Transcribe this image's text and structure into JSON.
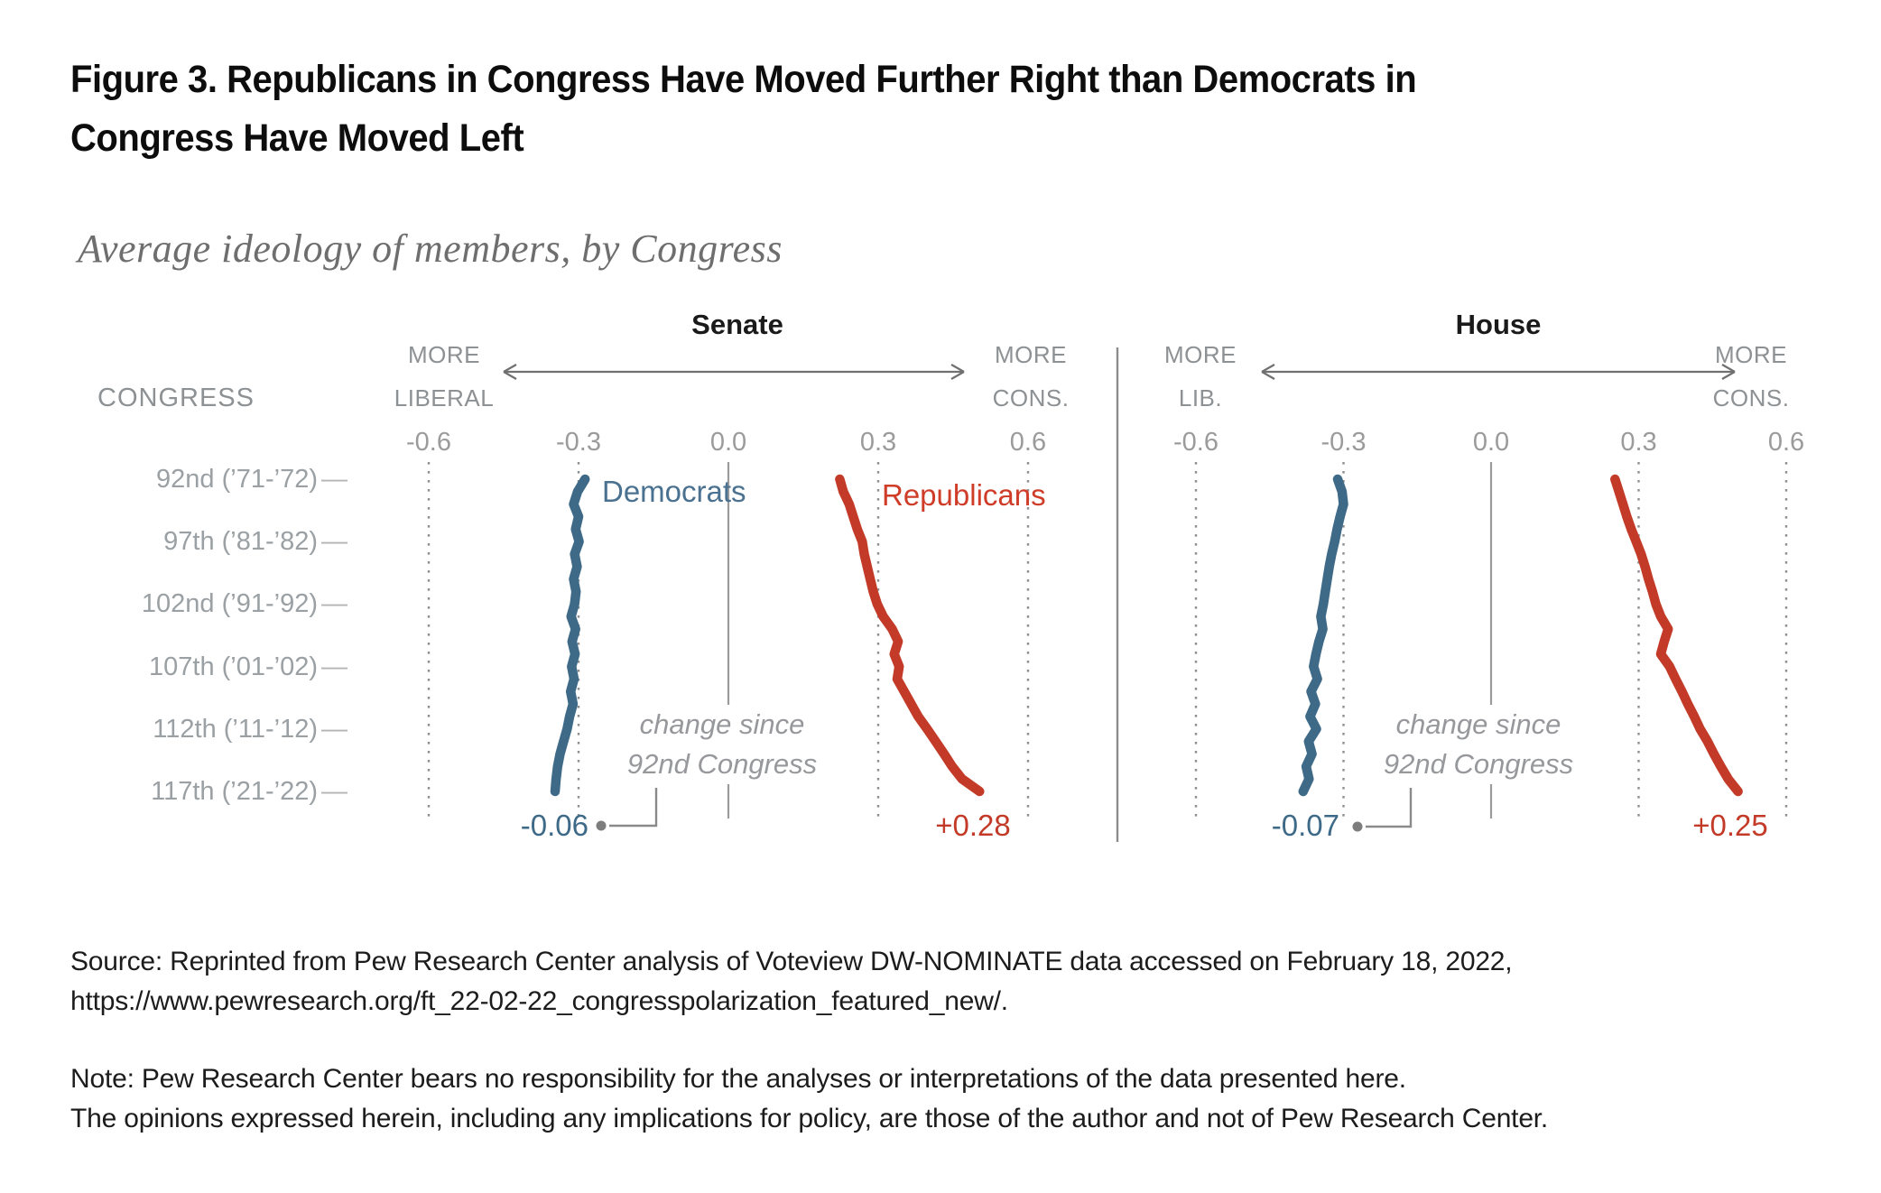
{
  "figure": {
    "title": "Figure 3. Republicans in Congress Have Moved Further Right than Democrats in\nCongress Have Moved Left",
    "subtitle": "Average ideology of members, by Congress",
    "source": "Source: Reprinted from Pew Research Center analysis of Voteview DW-NOMINATE data accessed on February 18, 2022,\nhttps://www.pewresearch.org/ft_22-02-22_congresspolarization_featured_new/.",
    "note": "Note: Pew Research Center bears no responsibility for the analyses or interpretations of the data presented here.\nThe opinions expressed herein, including any implications for policy, are those of the author and not of Pew Research Center."
  },
  "header": {
    "congress_label": "CONGRESS"
  },
  "chart_data": {
    "type": "line",
    "orientation": "vertical-time",
    "xlabel": "Average ideology (DW-NOMINATE)",
    "ylabel": "Congress",
    "x_congress": [
      92,
      93,
      94,
      95,
      96,
      97,
      98,
      99,
      100,
      101,
      102,
      103,
      104,
      105,
      106,
      107,
      108,
      109,
      110,
      111,
      112,
      113,
      114,
      115,
      116,
      117
    ],
    "congress_ticks": [
      {
        "congress": 92,
        "label": "92nd (’71-’72)"
      },
      {
        "congress": 97,
        "label": "97th (’81-’82)"
      },
      {
        "congress": 102,
        "label": "102nd (’91-’92)"
      },
      {
        "congress": 107,
        "label": "107th (’01-’02)"
      },
      {
        "congress": 112,
        "label": "112th (’11-’12)"
      },
      {
        "congress": 117,
        "label": "117th (’21-’22)"
      }
    ],
    "value_ticks": [
      "-0.6",
      "-0.3",
      "0.0",
      "0.3",
      "0.6"
    ],
    "value_tick_values": [
      -0.6,
      -0.3,
      0,
      0.3,
      0.6
    ],
    "xlim": [
      -0.75,
      0.75
    ],
    "grid": "dotted vertical at ±0.3 and ±0.6, solid at 0.0",
    "panels": [
      {
        "title": "Senate",
        "left_label": [
          "MORE",
          "LIBERAL"
        ],
        "right_label": [
          "MORE",
          "CONS."
        ],
        "annotation": "change since\n92nd Congress",
        "series": [
          {
            "name": "Democrats",
            "color": "#3e6a88",
            "label_color": "#4a7190",
            "change_since_92nd": "-0.06",
            "values": [
              -0.287,
              -0.302,
              -0.31,
              -0.3,
              -0.306,
              -0.299,
              -0.308,
              -0.303,
              -0.31,
              -0.305,
              -0.308,
              -0.315,
              -0.306,
              -0.313,
              -0.307,
              -0.314,
              -0.309,
              -0.316,
              -0.311,
              -0.318,
              -0.323,
              -0.33,
              -0.337,
              -0.342,
              -0.345,
              -0.347
            ]
          },
          {
            "name": "Republicans",
            "color": "#c33b28",
            "label_color": "#cf3c28",
            "change_since_92nd": "+0.28",
            "values": [
              0.223,
              0.23,
              0.242,
              0.25,
              0.258,
              0.268,
              0.272,
              0.278,
              0.284,
              0.29,
              0.298,
              0.31,
              0.328,
              0.34,
              0.332,
              0.342,
              0.338,
              0.352,
              0.366,
              0.38,
              0.398,
              0.415,
              0.432,
              0.448,
              0.468,
              0.503
            ]
          }
        ]
      },
      {
        "title": "House",
        "left_label": [
          "MORE",
          "LIB."
        ],
        "right_label": [
          "MORE",
          "CONS."
        ],
        "annotation": "change since\n92nd Congress",
        "series": [
          {
            "name": "Democrats",
            "color": "#3e6a88",
            "label_color": "#4a7190",
            "change_since_92nd": "-0.07",
            "values": [
              -0.312,
              -0.303,
              -0.3,
              -0.307,
              -0.313,
              -0.318,
              -0.324,
              -0.329,
              -0.333,
              -0.337,
              -0.341,
              -0.346,
              -0.342,
              -0.35,
              -0.356,
              -0.361,
              -0.353,
              -0.366,
              -0.357,
              -0.368,
              -0.355,
              -0.371,
              -0.364,
              -0.376,
              -0.37,
              -0.382
            ]
          },
          {
            "name": "Republicans",
            "color": "#c33b28",
            "label_color": "#cf3c28",
            "change_since_92nd": "+0.25",
            "values": [
              0.252,
              0.26,
              0.268,
              0.276,
              0.285,
              0.295,
              0.305,
              0.313,
              0.32,
              0.328,
              0.335,
              0.345,
              0.36,
              0.352,
              0.345,
              0.363,
              0.375,
              0.388,
              0.4,
              0.413,
              0.425,
              0.44,
              0.453,
              0.467,
              0.482,
              0.502
            ]
          }
        ]
      }
    ],
    "colors": {
      "democrat_line": "#3e6a88",
      "republican_line": "#c33b28",
      "grid": "#8f8f8f",
      "zero_line": "#9b9b9b",
      "divider": "#8c8c8c",
      "arrow": "#707070",
      "connector": "#8a8a8a",
      "text_gray": "#9aa0a3"
    }
  }
}
